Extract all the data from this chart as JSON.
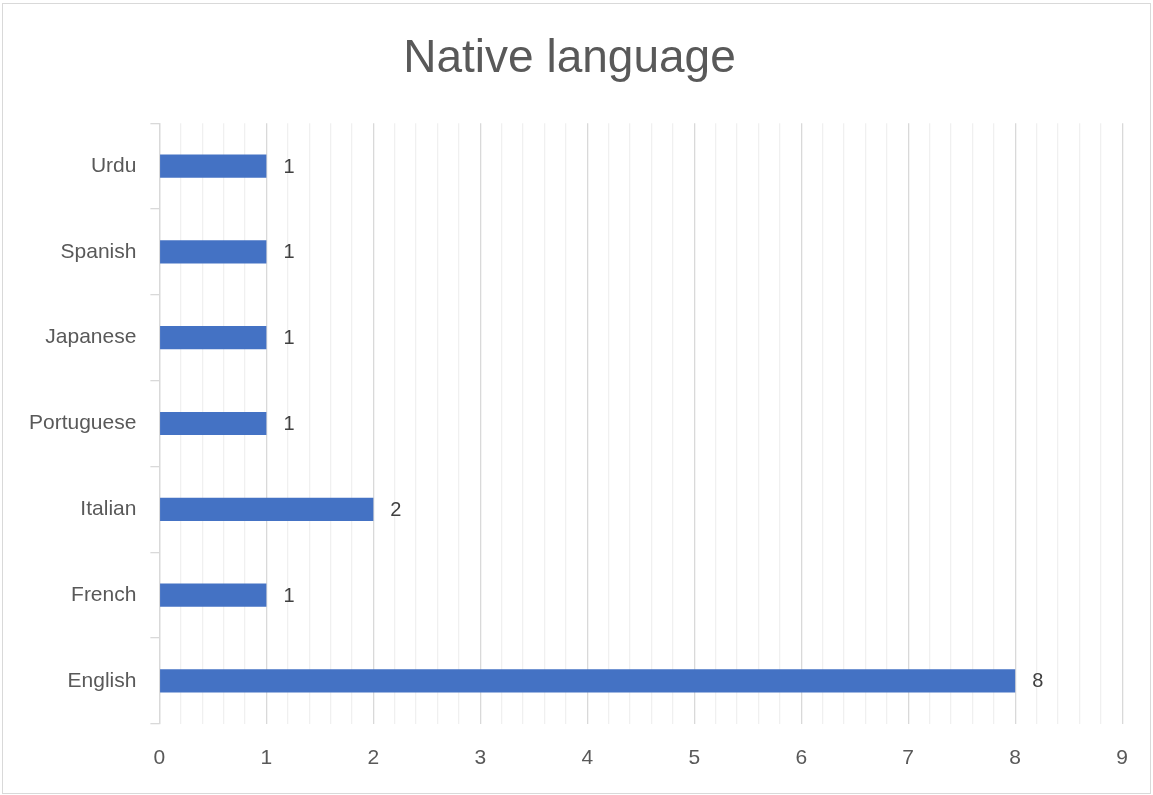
{
  "chart_data": {
    "type": "bar",
    "orientation": "horizontal",
    "title": "Native language",
    "categories": [
      "Urdu",
      "Spanish",
      "Japanese",
      "Portuguese",
      "Italian",
      "French",
      "English"
    ],
    "values": [
      1,
      1,
      1,
      1,
      2,
      1,
      8
    ],
    "color": "#4472c4",
    "xlim": [
      0,
      9
    ],
    "xticks": [
      0,
      {
        "value": 0.2,
        "label": null
      },
      {
        "value": 0.4,
        "label": null
      },
      {
        "value": 0.6,
        "label": null
      },
      {
        "value": 0.8,
        "label": null
      },
      1,
      {
        "value": 1.2,
        "label": null
      },
      {
        "value": 1.4,
        "label": null
      },
      {
        "value": 1.6,
        "label": null
      },
      {
        "value": 1.8,
        "label": null
      },
      2,
      {
        "value": 2.2,
        "label": null
      },
      {
        "value": 2.4,
        "label": null
      },
      {
        "value": 2.6,
        "label": null
      },
      {
        "value": 2.8,
        "label": null
      },
      3,
      {
        "value": 3.2,
        "label": null
      },
      {
        "value": 3.4,
        "label": null
      },
      {
        "value": 3.6,
        "label": null
      },
      {
        "value": 3.8,
        "label": null
      },
      4,
      {
        "value": 4.2,
        "label": null
      },
      {
        "value": 4.4,
        "label": null
      },
      {
        "value": 4.6,
        "label": null
      },
      {
        "value": 4.8,
        "label": null
      },
      5,
      {
        "value": 5.2,
        "label": null
      },
      {
        "value": 5.4,
        "label": null
      },
      {
        "value": 5.6,
        "label": null
      },
      {
        "value": 5.8,
        "label": null
      },
      6,
      {
        "value": 6.2,
        "label": null
      },
      {
        "value": 6.4,
        "label": null
      },
      {
        "value": 6.6,
        "label": null
      },
      {
        "value": 6.8,
        "label": null
      },
      7,
      {
        "value": 7.2,
        "label": null
      },
      {
        "value": 7.4,
        "label": null
      },
      {
        "value": 7.6,
        "label": null
      },
      {
        "value": 7.8,
        "label": null
      },
      8,
      {
        "value": 8.2,
        "label": null
      },
      {
        "value": 8.4,
        "label": null
      },
      {
        "value": 8.6,
        "label": null
      },
      {
        "value": 8.8,
        "label": null
      },
      9
    ],
    "grid": "x",
    "data_labels": true
  }
}
